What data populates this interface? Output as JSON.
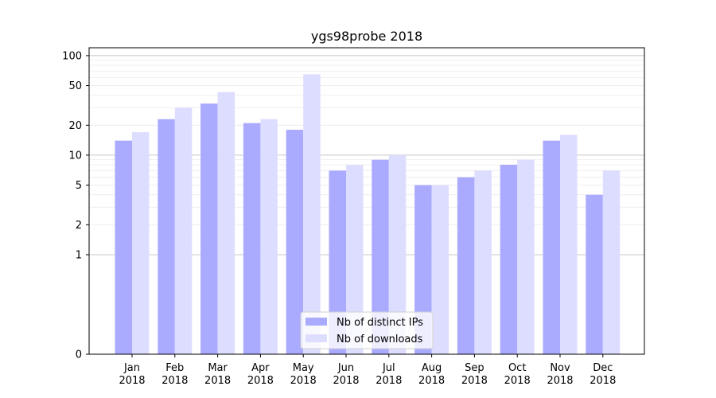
{
  "chart_data": {
    "type": "bar",
    "title": "ygs98probe 2018",
    "xlabel": "",
    "ylabel": "",
    "yscale": "symlog",
    "ylim": [
      0,
      120
    ],
    "yticks": [
      0,
      1,
      2,
      5,
      10,
      20,
      50,
      100
    ],
    "grid": true,
    "legend_position": "lower-center",
    "categories": [
      [
        "Jan",
        "2018"
      ],
      [
        "Feb",
        "2018"
      ],
      [
        "Mar",
        "2018"
      ],
      [
        "Apr",
        "2018"
      ],
      [
        "May",
        "2018"
      ],
      [
        "Jun",
        "2018"
      ],
      [
        "Jul",
        "2018"
      ],
      [
        "Aug",
        "2018"
      ],
      [
        "Sep",
        "2018"
      ],
      [
        "Oct",
        "2018"
      ],
      [
        "Nov",
        "2018"
      ],
      [
        "Dec",
        "2018"
      ]
    ],
    "series": [
      {
        "name": "Nb of distinct IPs",
        "color": "#aaaaff",
        "values": [
          14,
          23,
          33,
          21,
          18,
          7,
          9,
          5,
          6,
          8,
          14,
          4
        ]
      },
      {
        "name": "Nb of downloads",
        "color": "#ddddff",
        "values": [
          17,
          30,
          43,
          23,
          65,
          8,
          10,
          5,
          7,
          9,
          16,
          7
        ]
      }
    ]
  }
}
